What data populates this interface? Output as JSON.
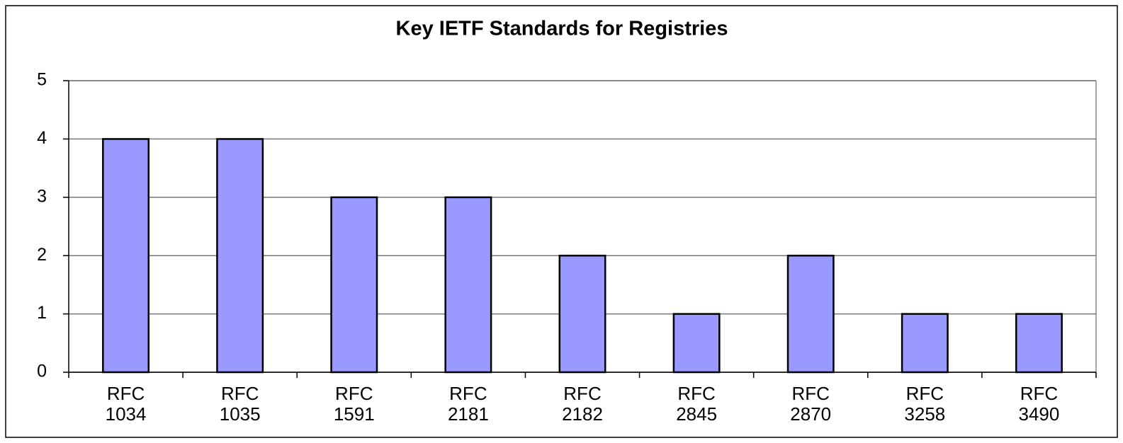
{
  "chart_data": {
    "type": "bar",
    "title": "Key IETF Standards for Registries",
    "categories": [
      "RFC 1034",
      "RFC 1035",
      "RFC 1591",
      "RFC 2181",
      "RFC 2182",
      "RFC 2845",
      "RFC 2870",
      "RFC 3258",
      "RFC 3490"
    ],
    "values": [
      4,
      4,
      3,
      3,
      2,
      1,
      2,
      1,
      1
    ],
    "color": "#9999ff",
    "ylim": [
      0,
      5
    ],
    "yticks": [
      0,
      1,
      2,
      3,
      4,
      5
    ],
    "grid": true
  }
}
